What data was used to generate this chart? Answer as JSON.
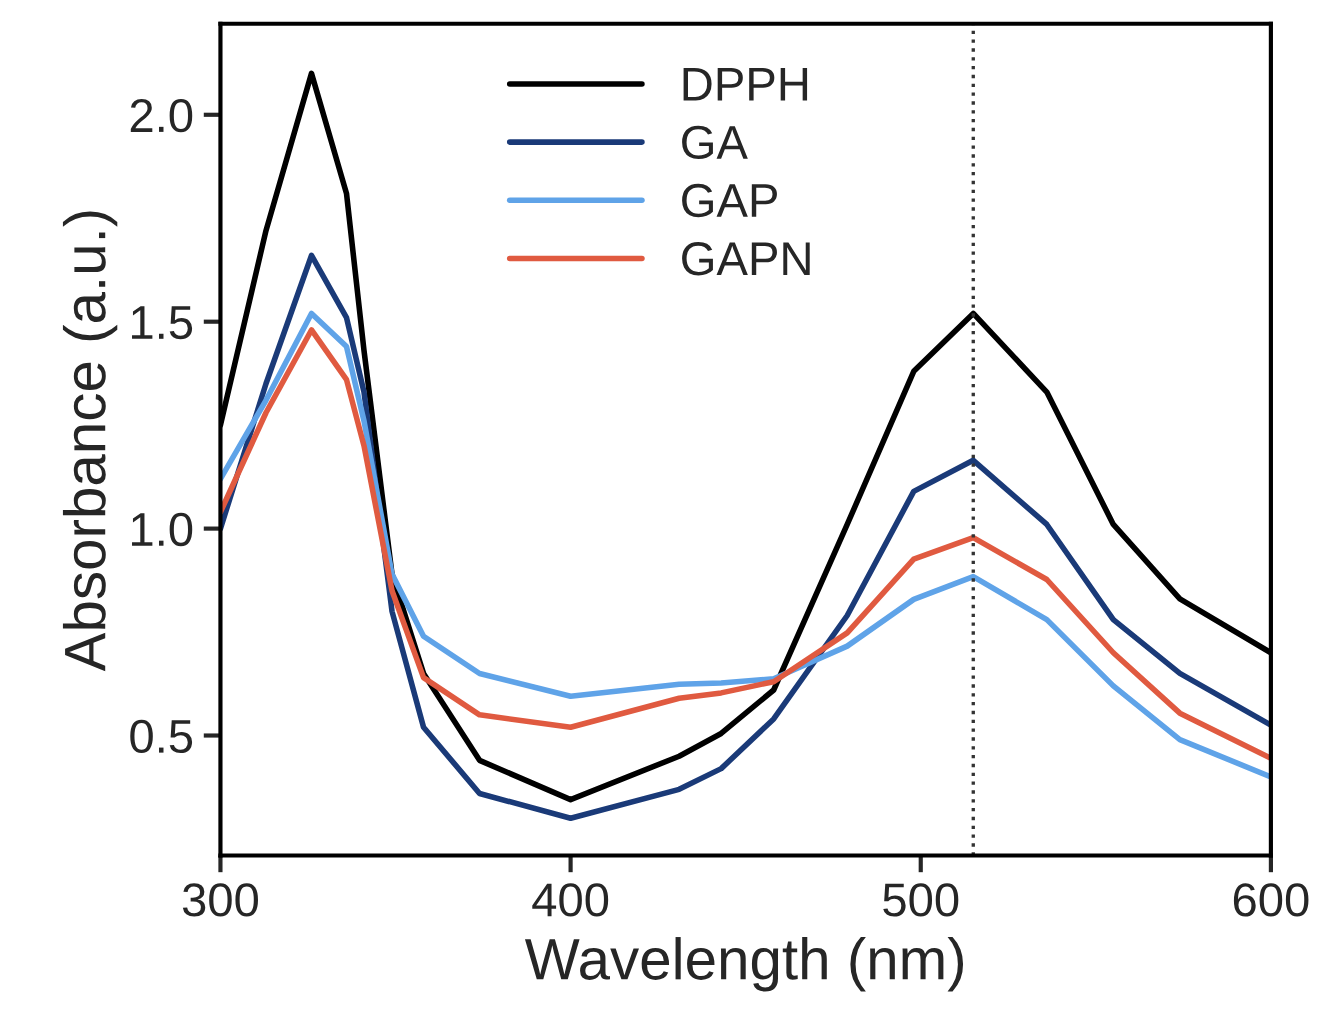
{
  "chart_data": {
    "type": "line",
    "xlabel": "Wavelength (nm)",
    "ylabel": "Absorbance (a.u.)",
    "x": [
      300,
      313,
      326,
      336,
      341,
      349,
      358,
      374,
      400,
      431,
      443,
      458,
      479,
      498,
      515,
      536,
      555,
      574,
      600
    ],
    "series": [
      {
        "name": "DPPH",
        "color": "#000000",
        "values": [
          1.25,
          1.72,
          2.1,
          1.81,
          1.43,
          0.89,
          0.65,
          0.44,
          0.345,
          0.45,
          0.505,
          0.61,
          1.01,
          1.38,
          1.52,
          1.33,
          1.01,
          0.83,
          0.7
        ]
      },
      {
        "name": "GA",
        "color": "#1a3a78",
        "values": [
          1.0,
          1.35,
          1.66,
          1.51,
          1.33,
          0.8,
          0.52,
          0.36,
          0.3,
          0.37,
          0.42,
          0.54,
          0.79,
          1.09,
          1.165,
          1.01,
          0.78,
          0.65,
          0.525
        ]
      },
      {
        "name": "GAP",
        "color": "#5fa3e8",
        "values": [
          1.12,
          1.31,
          1.52,
          1.44,
          1.26,
          0.89,
          0.74,
          0.65,
          0.595,
          0.624,
          0.627,
          0.637,
          0.716,
          0.829,
          0.884,
          0.78,
          0.62,
          0.49,
          0.4
        ]
      },
      {
        "name": "GAPN",
        "color": "#e05a40",
        "values": [
          1.04,
          1.28,
          1.48,
          1.36,
          1.2,
          0.85,
          0.64,
          0.55,
          0.52,
          0.59,
          0.603,
          0.63,
          0.748,
          0.926,
          0.978,
          0.877,
          0.7,
          0.554,
          0.445
        ]
      }
    ],
    "xlim": [
      300,
      600
    ],
    "xticks": [
      300,
      400,
      500,
      600
    ],
    "ylim": [
      0.21,
      2.22
    ],
    "yticks": [
      {
        "value": 0.5,
        "label": "0.5"
      },
      {
        "value": 1.0,
        "label": "1.0"
      },
      {
        "value": 1.5,
        "label": "1.5"
      },
      {
        "value": 2.0,
        "label": "2.0"
      }
    ],
    "ref_lines": [
      {
        "axis": "x",
        "value": 515,
        "color": "#333333",
        "line_style": "dotted"
      }
    ],
    "legend": "top",
    "grid": false,
    "marker": "none",
    "line_style": "solid"
  }
}
